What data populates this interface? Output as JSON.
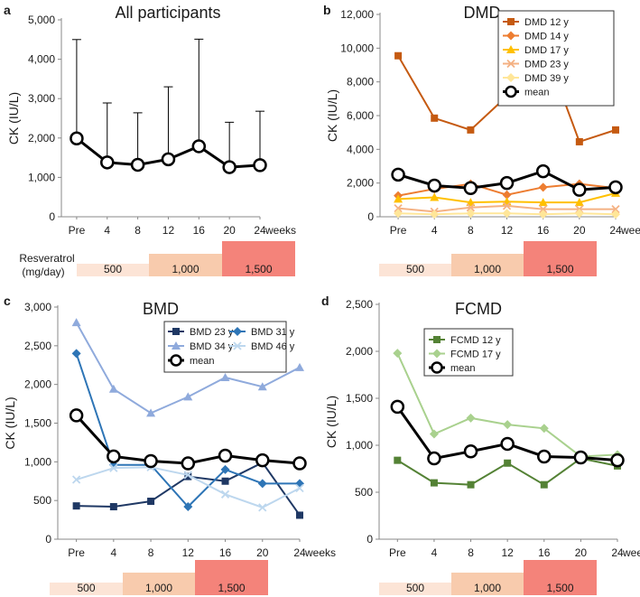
{
  "chart_data": [
    {
      "panel": "a",
      "type": "line",
      "title": "All participants",
      "ylabel": "CK (IU/L)",
      "xlabel": "weeks",
      "categories": [
        "Pre",
        "4",
        "8",
        "12",
        "16",
        "20",
        "24"
      ],
      "ylim": [
        0,
        5000
      ],
      "yticks": [
        0,
        1000,
        2000,
        3000,
        4000,
        5000
      ],
      "ytick_labels": [
        "0",
        "1,000",
        "2,000",
        "3,000",
        "4,000",
        "5,000"
      ],
      "series": [
        {
          "name": "mean",
          "color": "#000000",
          "marker": "circle-open",
          "width": 3,
          "values": [
            1990,
            1380,
            1320,
            1460,
            1790,
            1260,
            1310
          ],
          "error_upper": [
            4500,
            2890,
            2640,
            3300,
            4510,
            2400,
            2680
          ]
        }
      ],
      "legend": []
    },
    {
      "panel": "b",
      "type": "line",
      "title": "DMD",
      "ylabel": "CK (IU/L)",
      "xlabel": "weeks",
      "categories": [
        "Pre",
        "4",
        "8",
        "12",
        "16",
        "20",
        "24"
      ],
      "ylim": [
        0,
        12000
      ],
      "yticks": [
        0,
        2000,
        4000,
        6000,
        8000,
        10000,
        12000
      ],
      "ytick_labels": [
        "0",
        "2,000",
        "4,000",
        "6,000",
        "8,000",
        "10,000",
        "12,000"
      ],
      "series": [
        {
          "name": "DMD 12 y",
          "color": "#c55a11",
          "marker": "square",
          "width": 2,
          "values": [
            9550,
            5850,
            5150,
            7150,
            10250,
            4450,
            5150
          ]
        },
        {
          "name": "DMD 14 y",
          "color": "#ed7d31",
          "marker": "diamond",
          "width": 2,
          "values": [
            1250,
            1650,
            1950,
            1300,
            1750,
            1950,
            1700
          ]
        },
        {
          "name": "DMD 17 y",
          "color": "#ffc000",
          "marker": "triangle",
          "width": 2,
          "values": [
            1050,
            1150,
            850,
            900,
            850,
            850,
            1400
          ]
        },
        {
          "name": "DMD 23 y",
          "color": "#f4b183",
          "marker": "x",
          "width": 2,
          "values": [
            500,
            300,
            550,
            650,
            450,
            450,
            450
          ]
        },
        {
          "name": "DMD 39 y",
          "color": "#ffe699",
          "marker": "diamond",
          "width": 2,
          "values": [
            200,
            150,
            200,
            200,
            150,
            200,
            150
          ]
        },
        {
          "name": "mean",
          "color": "#000000",
          "marker": "circle-open",
          "width": 3,
          "values": [
            2500,
            1850,
            1700,
            2000,
            2700,
            1600,
            1750
          ]
        }
      ],
      "legend": [
        "DMD 12 y",
        "DMD 14 y",
        "DMD 17 y",
        "DMD 23 y",
        "DMD 39 y",
        "mean"
      ]
    },
    {
      "panel": "c",
      "type": "line",
      "title": "BMD",
      "ylabel": "CK (IU/L)",
      "xlabel": "weeks",
      "categories": [
        "Pre",
        "4",
        "8",
        "12",
        "16",
        "20",
        "24"
      ],
      "ylim": [
        0,
        3000
      ],
      "yticks": [
        0,
        500,
        1000,
        1500,
        2000,
        2500,
        3000
      ],
      "ytick_labels": [
        "0",
        "500",
        "1,000",
        "1,500",
        "2,000",
        "2,500",
        "3,000"
      ],
      "series": [
        {
          "name": "BMD 23 y",
          "color": "#1f3864",
          "marker": "square",
          "width": 2,
          "values": [
            430,
            420,
            490,
            810,
            750,
            990,
            310
          ]
        },
        {
          "name": "BMD 31 y",
          "color": "#2e75b6",
          "marker": "diamond",
          "width": 2,
          "values": [
            2400,
            960,
            960,
            420,
            900,
            720,
            720
          ]
        },
        {
          "name": "BMD 34 y",
          "color": "#8faadc",
          "marker": "triangle",
          "width": 2,
          "values": [
            2800,
            1940,
            1630,
            1840,
            2090,
            1970,
            2220
          ]
        },
        {
          "name": "BMD 46 y",
          "color": "#bdd7ee",
          "marker": "x",
          "width": 2,
          "values": [
            770,
            920,
            930,
            830,
            580,
            410,
            660
          ]
        },
        {
          "name": "mean",
          "color": "#000000",
          "marker": "circle-open",
          "width": 3,
          "values": [
            1600,
            1070,
            1010,
            980,
            1080,
            1020,
            980
          ]
        }
      ],
      "legend": [
        "BMD 23 y",
        "BMD 31 y",
        "BMD 34 y",
        "BMD 46 y",
        "mean"
      ]
    },
    {
      "panel": "d",
      "type": "line",
      "title": "FCMD",
      "ylabel": "CK (IU/L)",
      "xlabel": "weeks",
      "categories": [
        "Pre",
        "4",
        "8",
        "12",
        "16",
        "20",
        "24"
      ],
      "ylim": [
        0,
        2500
      ],
      "yticks": [
        0,
        500,
        1000,
        1500,
        2000,
        2500
      ],
      "ytick_labels": [
        "0",
        "500",
        "1,000",
        "1,500",
        "2,000",
        "2,500"
      ],
      "series": [
        {
          "name": "FCMD 12 y",
          "color": "#548235",
          "marker": "square",
          "width": 2,
          "values": [
            840,
            600,
            580,
            810,
            580,
            860,
            780
          ]
        },
        {
          "name": "FCMD 17 y",
          "color": "#a9d18e",
          "marker": "diamond",
          "width": 2,
          "values": [
            1980,
            1120,
            1290,
            1220,
            1180,
            880,
            900
          ]
        },
        {
          "name": "mean",
          "color": "#000000",
          "marker": "circle-open",
          "width": 3,
          "values": [
            1410,
            860,
            935,
            1015,
            880,
            870,
            840
          ]
        }
      ],
      "legend": [
        "FCMD 12 y",
        "FCMD 17 y",
        "mean"
      ]
    }
  ],
  "dose_bar": {
    "label_line1": "Resveratrol",
    "label_line2": "(mg/day)",
    "segments": [
      {
        "label": "500",
        "color": "#fce4d6"
      },
      {
        "label": "1,000",
        "color": "#f8cbad"
      },
      {
        "label": "1,500",
        "color": "#f4837a"
      }
    ]
  }
}
